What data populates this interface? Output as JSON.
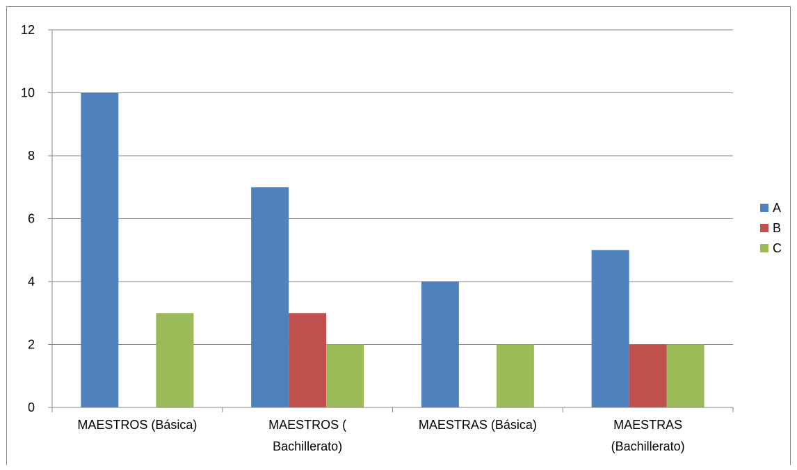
{
  "chart_data": {
    "type": "bar",
    "categories": [
      [
        "MAESTROS (Básica)"
      ],
      [
        "MAESTROS (",
        "Bachillerato)"
      ],
      [
        "MAESTRAS  (Básica)"
      ],
      [
        "MAESTRAS",
        "(Bachillerato)"
      ]
    ],
    "series": [
      {
        "name": "A",
        "color": "#4F81BD",
        "values": [
          10,
          7,
          4,
          5
        ]
      },
      {
        "name": "B",
        "color": "#C0504D",
        "values": [
          0,
          3,
          0,
          2
        ]
      },
      {
        "name": "C",
        "color": "#9BBB59",
        "values": [
          3,
          2,
          2,
          2
        ]
      }
    ],
    "ylim": [
      0,
      12
    ],
    "yticks": [
      0,
      2,
      4,
      6,
      8,
      10,
      12
    ],
    "title": "",
    "xlabel": "",
    "ylabel": "",
    "grid": true,
    "legend_position": "right"
  }
}
